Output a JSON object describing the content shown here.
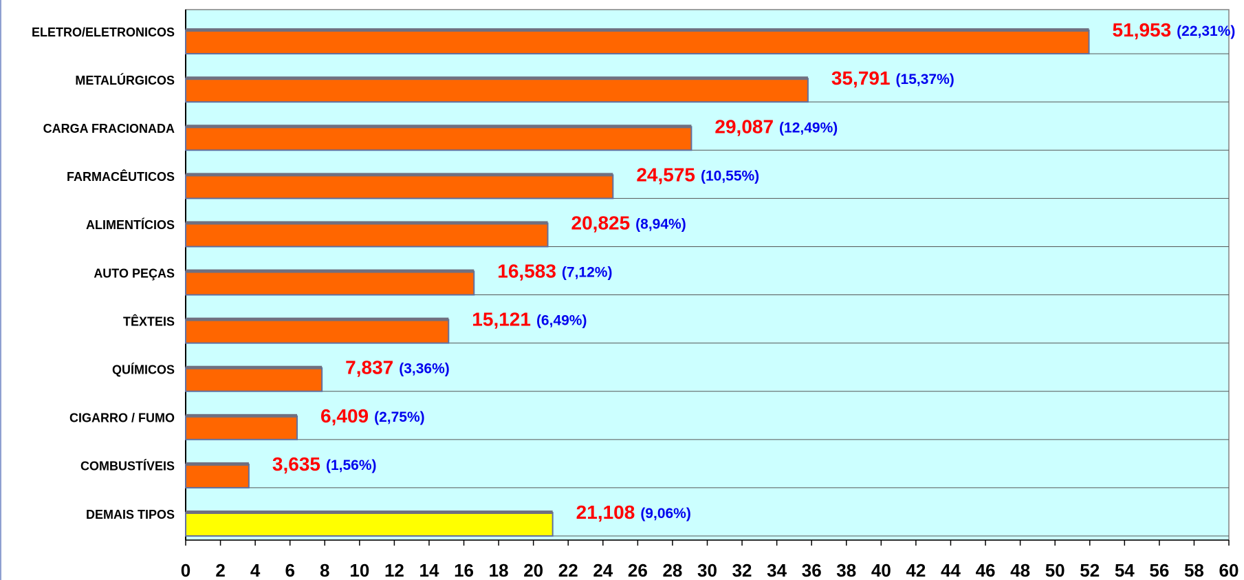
{
  "chart_data": {
    "type": "bar",
    "orientation": "horizontal",
    "categories": [
      "ELETRO/ELETRONICOS",
      "METALÚRGICOS",
      "CARGA FRACIONADA",
      "FARMACÊUTICOS",
      "ALIMENTÍCIOS",
      "AUTO PEÇAS",
      "TÊXTEIS",
      "QUÍMICOS",
      "CIGARRO / FUMO",
      "COMBUSTÍVEIS",
      "DEMAIS TIPOS"
    ],
    "values": [
      51.953,
      35.791,
      29.087,
      24.575,
      20.825,
      16.583,
      15.121,
      7.837,
      6.409,
      3.635,
      21.108
    ],
    "value_labels": [
      "51,953",
      "35,791",
      "29,087",
      "24,575",
      "20,825",
      "16,583",
      "15,121",
      "7,837",
      "6,409",
      "3,635",
      "21,108"
    ],
    "share_labels": [
      "(22,31%)",
      "(15,37%)",
      "(12,49%)",
      "(10,55%)",
      "(8,94%)",
      "(7,12%)",
      "(6,49%)",
      "(3,36%)",
      "(2,75%)",
      "(1,56%)",
      "(9,06%)"
    ],
    "colors": [
      "#ff6600",
      "#ff6600",
      "#ff6600",
      "#ff6600",
      "#ff6600",
      "#ff6600",
      "#ff6600",
      "#ff6600",
      "#ff6600",
      "#ff6600",
      "#ffff00"
    ],
    "xlim": [
      0,
      60
    ],
    "xticks": [
      0,
      2,
      4,
      6,
      8,
      10,
      12,
      14,
      16,
      18,
      20,
      22,
      24,
      26,
      28,
      30,
      32,
      34,
      36,
      38,
      40,
      42,
      44,
      46,
      48,
      50,
      52,
      54,
      56,
      58,
      60
    ],
    "grid": true
  }
}
